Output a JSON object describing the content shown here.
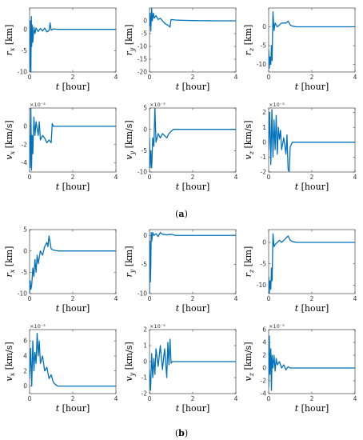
{
  "figure": {
    "panel_a_caption": "(a)",
    "panel_b_caption": "(b)",
    "line_color": "#0072BD"
  },
  "chart_data": [
    {
      "type": "line",
      "group": "a",
      "ylabel": "r_x [km]",
      "xlabel": "t [hour]",
      "xlim": [
        0,
        4
      ],
      "ylim": [
        -10,
        5
      ],
      "xticks": [
        0,
        2,
        4
      ],
      "yticks": [
        -10,
        -5,
        0
      ],
      "exponent": "",
      "series": [
        {
          "x": [
            0,
            0.02,
            0.04,
            0.06,
            0.08,
            0.1,
            0.12,
            0.15,
            0.2,
            0.25,
            0.3,
            0.4,
            0.5,
            0.6,
            0.7,
            0.8,
            0.9,
            0.95,
            1.0,
            1.1,
            1.3,
            1.6,
            2,
            3,
            4
          ],
          "y": [
            -10,
            -5,
            2,
            -11,
            3,
            -4,
            1,
            -3,
            0.5,
            -1,
            0.3,
            -0.5,
            0.2,
            -0.4,
            0.3,
            -0.6,
            -0.3,
            1.5,
            -0.2,
            0.1,
            0,
            0,
            0,
            0,
            0
          ]
        }
      ]
    },
    {
      "type": "line",
      "group": "a",
      "ylabel": "r_y [km]",
      "xlabel": "t [hour]",
      "xlim": [
        0,
        4
      ],
      "ylim": [
        -20,
        5
      ],
      "xticks": [
        0,
        2,
        4
      ],
      "yticks": [
        -20,
        -15,
        -10,
        -5,
        0
      ],
      "exponent": "",
      "series": [
        {
          "x": [
            0,
            0.03,
            0.06,
            0.1,
            0.13,
            0.18,
            0.22,
            0.3,
            0.4,
            0.5,
            0.6,
            0.7,
            0.8,
            0.9,
            0.95,
            1.0,
            1.2,
            1.5,
            2,
            3,
            4
          ],
          "y": [
            -2,
            3,
            -4,
            5,
            0,
            3,
            1,
            2,
            0.5,
            1,
            0,
            -1,
            -1.5,
            -2,
            -2.5,
            0.5,
            0.3,
            0.2,
            0.1,
            0,
            0
          ]
        }
      ]
    },
    {
      "type": "line",
      "group": "a",
      "ylabel": "r_z [km]",
      "xlabel": "t [hour]",
      "xlim": [
        0,
        4
      ],
      "ylim": [
        -12,
        5
      ],
      "xticks": [
        0,
        2,
        4
      ],
      "yticks": [
        -10,
        -5,
        0
      ],
      "exponent": "",
      "series": [
        {
          "x": [
            0,
            0.03,
            0.06,
            0.1,
            0.13,
            0.16,
            0.2,
            0.25,
            0.3,
            0.4,
            0.5,
            0.6,
            0.7,
            0.8,
            0.9,
            1.0,
            1.1,
            1.3,
            1.6,
            2,
            3,
            4
          ],
          "y": [
            -6,
            -11,
            -8,
            -10,
            -5,
            -9,
            4,
            -1,
            1,
            0,
            0.5,
            1,
            1,
            1,
            1.5,
            0.5,
            0.2,
            0,
            0,
            0,
            0,
            0
          ]
        }
      ]
    },
    {
      "type": "line",
      "group": "a",
      "ylabel": "v_x [km/s]",
      "xlabel": "t [hour]",
      "xlim": [
        0,
        4
      ],
      "ylim": [
        -5,
        2
      ],
      "xticks": [
        0,
        2,
        4
      ],
      "yticks": [
        -4,
        -2,
        0
      ],
      "exponent": "×10⁻³",
      "series": [
        {
          "x": [
            0,
            0.03,
            0.06,
            0.09,
            0.12,
            0.15,
            0.2,
            0.25,
            0.3,
            0.4,
            0.45,
            0.5,
            0.6,
            0.7,
            0.8,
            0.9,
            1.0,
            1.05,
            1.1,
            1.3,
            1.6,
            2,
            3,
            4
          ],
          "y": [
            -1,
            -4.5,
            2,
            -4.8,
            -1,
            -3,
            1,
            -1,
            0.5,
            -1,
            0.5,
            -1.5,
            -1,
            -1.3,
            -1.8,
            -1.5,
            -1.8,
            0.3,
            0,
            0,
            0,
            0,
            0,
            0
          ]
        }
      ]
    },
    {
      "type": "line",
      "group": "a",
      "ylabel": "v_y [km/s]",
      "xlabel": "t [hour]",
      "xlim": [
        0,
        4
      ],
      "ylim": [
        -10,
        5
      ],
      "xticks": [
        0,
        2,
        4
      ],
      "yticks": [
        -10,
        -5,
        0,
        5
      ],
      "exponent": "×10⁻³",
      "series": [
        {
          "x": [
            0,
            0.03,
            0.06,
            0.1,
            0.15,
            0.2,
            0.25,
            0.3,
            0.4,
            0.5,
            0.6,
            0.7,
            0.8,
            0.9,
            1.0,
            1.1,
            1.3,
            1.6,
            2,
            3,
            4
          ],
          "y": [
            -2,
            -9,
            -5,
            -9,
            -2,
            -4,
            5,
            -3,
            -1,
            -2,
            -1,
            -1.5,
            -2,
            -1,
            -0.5,
            0,
            0,
            0,
            0,
            0,
            0
          ]
        }
      ]
    },
    {
      "type": "line",
      "group": "a",
      "ylabel": "v_z [km/s]",
      "xlabel": "t [hour]",
      "xlim": [
        0,
        4
      ],
      "ylim": [
        -2,
        2.3
      ],
      "xticks": [
        0,
        2,
        4
      ],
      "yticks": [
        -2,
        -1,
        0,
        1,
        2
      ],
      "exponent": "×10⁻³",
      "series": [
        {
          "x": [
            0,
            0.05,
            0.1,
            0.15,
            0.2,
            0.25,
            0.3,
            0.35,
            0.4,
            0.45,
            0.5,
            0.55,
            0.6,
            0.7,
            0.8,
            0.85,
            0.9,
            0.95,
            1.0,
            1.1,
            1.3,
            1.6,
            2,
            3,
            4
          ],
          "y": [
            -0.5,
            2,
            -1.5,
            2.2,
            -1,
            1.5,
            -0.5,
            1.8,
            -0.8,
            1,
            0.2,
            0.8,
            -0.5,
            0.3,
            -0.8,
            0.5,
            -1.8,
            -2,
            -0.3,
            0,
            0,
            0,
            0,
            0,
            0
          ]
        }
      ]
    },
    {
      "type": "line",
      "group": "b",
      "ylabel": "r_x [km]",
      "xlabel": "t [hour]",
      "xlim": [
        0,
        4
      ],
      "ylim": [
        -10,
        5
      ],
      "xticks": [
        0,
        2,
        4
      ],
      "yticks": [
        -10,
        -5,
        0,
        5
      ],
      "exponent": "",
      "series": [
        {
          "x": [
            0,
            0.03,
            0.06,
            0.1,
            0.15,
            0.2,
            0.25,
            0.3,
            0.35,
            0.4,
            0.5,
            0.6,
            0.7,
            0.8,
            0.85,
            0.9,
            0.95,
            1.0,
            1.1,
            1.3,
            1.6,
            2,
            3,
            4
          ],
          "y": [
            -10,
            -7,
            -9,
            -8,
            -4,
            -6,
            -2,
            -5,
            -1,
            -3,
            0,
            -1,
            1,
            2,
            1,
            3.5,
            2,
            0.5,
            0.2,
            0,
            0,
            0,
            0,
            0
          ]
        }
      ]
    },
    {
      "type": "line",
      "group": "b",
      "ylabel": "r_y [km]",
      "xlabel": "t [hour]",
      "xlim": [
        0,
        4
      ],
      "ylim": [
        -10,
        1
      ],
      "xticks": [
        0,
        2,
        4
      ],
      "yticks": [
        -10,
        -5,
        0
      ],
      "exponent": "",
      "series": [
        {
          "x": [
            0,
            0.02,
            0.04,
            0.06,
            0.08,
            0.1,
            0.15,
            0.2,
            0.3,
            0.4,
            0.5,
            0.6,
            0.8,
            1.0,
            1.2,
            1.5,
            2,
            3,
            4
          ],
          "y": [
            -10,
            -1,
            -8,
            -5,
            0.5,
            -1,
            0.5,
            0,
            0.3,
            -0.2,
            0.5,
            0.2,
            0.1,
            0.2,
            0,
            0,
            0,
            0,
            0
          ]
        }
      ]
    },
    {
      "type": "line",
      "group": "b",
      "ylabel": "r_z [km]",
      "xlabel": "t [hour]",
      "xlim": [
        0,
        4
      ],
      "ylim": [
        -12,
        3
      ],
      "xticks": [
        0,
        2,
        4
      ],
      "yticks": [
        -10,
        -5,
        0
      ],
      "exponent": "",
      "series": [
        {
          "x": [
            0,
            0.03,
            0.06,
            0.1,
            0.13,
            0.16,
            0.2,
            0.25,
            0.3,
            0.4,
            0.5,
            0.6,
            0.7,
            0.8,
            0.9,
            1.0,
            1.1,
            1.3,
            1.6,
            2,
            3,
            4
          ],
          "y": [
            -8,
            -12,
            -9,
            -11,
            -6,
            -9,
            2,
            -1,
            -0.5,
            0,
            0.5,
            0,
            0.5,
            1,
            1.5,
            0.5,
            0.2,
            0,
            0,
            0,
            0,
            0
          ]
        }
      ]
    },
    {
      "type": "line",
      "group": "b",
      "ylabel": "v_x [km/s]",
      "xlabel": "t [hour]",
      "xlim": [
        0,
        4
      ],
      "ylim": [
        -1,
        7.5
      ],
      "xticks": [
        0,
        2,
        4
      ],
      "yticks": [
        0,
        2,
        4,
        6
      ],
      "exponent": "×10⁻³",
      "series": [
        {
          "x": [
            0,
            0.05,
            0.1,
            0.15,
            0.2,
            0.25,
            0.3,
            0.35,
            0.4,
            0.45,
            0.5,
            0.6,
            0.7,
            0.8,
            0.9,
            1.0,
            1.1,
            1.2,
            1.3,
            1.5,
            2,
            3,
            4
          ],
          "y": [
            1,
            5,
            0,
            6,
            2,
            4.5,
            3,
            7,
            4,
            6,
            3,
            4,
            2,
            2.5,
            1,
            1.5,
            0.5,
            0.2,
            0,
            0,
            0,
            0,
            0
          ]
        }
      ]
    },
    {
      "type": "line",
      "group": "b",
      "ylabel": "v_y [km/s]",
      "xlabel": "t [hour]",
      "xlim": [
        0,
        4
      ],
      "ylim": [
        -2,
        2
      ],
      "xticks": [
        0,
        2,
        4
      ],
      "yticks": [
        -2,
        -1,
        0,
        1,
        2
      ],
      "exponent": "×10⁻³",
      "series": [
        {
          "x": [
            0,
            0.05,
            0.1,
            0.15,
            0.2,
            0.25,
            0.3,
            0.4,
            0.5,
            0.6,
            0.7,
            0.8,
            0.85,
            0.9,
            0.95,
            1.0,
            1.05,
            1.1,
            1.3,
            1.6,
            2,
            3,
            4
          ],
          "y": [
            -0.5,
            -1.8,
            0.5,
            -1,
            0.2,
            -0.8,
            0.8,
            -0.3,
            1,
            -0.5,
            0.8,
            -1,
            1.2,
            -0.2,
            1.4,
            -0.1,
            0,
            0,
            0,
            0,
            0,
            0,
            0
          ]
        }
      ]
    },
    {
      "type": "line",
      "group": "b",
      "ylabel": "v_z [km/s]",
      "xlabel": "t [hour]",
      "xlim": [
        0,
        4
      ],
      "ylim": [
        -4,
        6
      ],
      "xticks": [
        0,
        2,
        4
      ],
      "yticks": [
        -4,
        -2,
        0,
        2,
        4,
        6
      ],
      "exponent": "×10⁻³",
      "series": [
        {
          "x": [
            0,
            0.03,
            0.06,
            0.1,
            0.13,
            0.16,
            0.2,
            0.25,
            0.3,
            0.35,
            0.4,
            0.5,
            0.6,
            0.7,
            0.8,
            0.9,
            1.0,
            1.2,
            1.5,
            2,
            3,
            4
          ],
          "y": [
            -3,
            5,
            -1,
            3,
            -3.5,
            2,
            0,
            2,
            -0.5,
            1.5,
            0.5,
            1,
            0,
            0.5,
            -0.3,
            0.2,
            0,
            0,
            0,
            0,
            0,
            0
          ]
        }
      ]
    }
  ]
}
